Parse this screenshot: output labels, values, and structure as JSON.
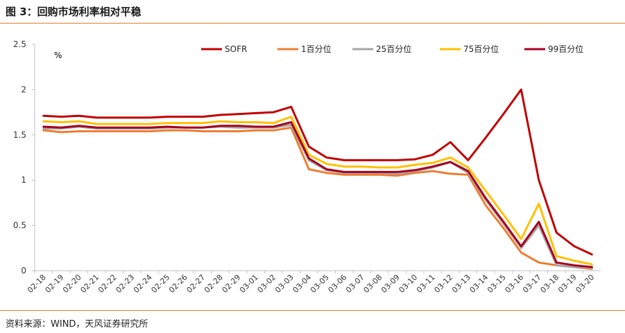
{
  "title": "图 3：回购市场利率相对平稳",
  "source": "资料来源：WIND，天风证券研究所",
  "chart_data": {
    "type": "line",
    "unit": "%",
    "ylim": [
      0,
      2.5
    ],
    "yticks": [
      "2.5",
      "2",
      "1.5",
      "1",
      "0.5",
      "0"
    ],
    "ytick_values": [
      2.5,
      2,
      1.5,
      1,
      0.5,
      0
    ],
    "categories": [
      "02-18",
      "02-19",
      "02-20",
      "02-21",
      "02-22",
      "02-23",
      "02-24",
      "02-25",
      "02-26",
      "02-27",
      "02-28",
      "02-29",
      "03-01",
      "03-02",
      "03-03",
      "03-04",
      "03-05",
      "03-06",
      "03-07",
      "03-08",
      "03-09",
      "03-10",
      "03-11",
      "03-12",
      "03-13",
      "03-14",
      "03-15",
      "03-16",
      "03-17",
      "03-18",
      "03-19",
      "03-20"
    ],
    "legend_position": "top",
    "grid": false,
    "series": [
      {
        "name": "SOFR",
        "color": "#c00000",
        "values": [
          1.71,
          1.7,
          1.71,
          1.69,
          1.69,
          1.69,
          1.69,
          1.7,
          1.7,
          1.7,
          1.72,
          1.73,
          1.74,
          1.75,
          1.81,
          1.37,
          1.25,
          1.22,
          1.22,
          1.22,
          1.22,
          1.23,
          1.28,
          1.42,
          1.22,
          1.47,
          1.73,
          2.0,
          1.0,
          0.42,
          0.27,
          0.18
        ]
      },
      {
        "name": "1百分位",
        "color": "#ed7d31",
        "values": [
          1.55,
          1.53,
          1.54,
          1.54,
          1.54,
          1.54,
          1.54,
          1.55,
          1.55,
          1.54,
          1.54,
          1.54,
          1.55,
          1.55,
          1.58,
          1.12,
          1.08,
          1.06,
          1.06,
          1.06,
          1.05,
          1.08,
          1.1,
          1.07,
          1.06,
          0.72,
          0.47,
          0.2,
          0.09,
          0.06,
          0.04,
          0.02
        ]
      },
      {
        "name": "25百分位",
        "color": "#a5a5a5",
        "values": [
          1.57,
          1.57,
          1.59,
          1.57,
          1.57,
          1.57,
          1.57,
          1.58,
          1.58,
          1.58,
          1.59,
          1.58,
          1.58,
          1.58,
          1.61,
          1.22,
          1.11,
          1.08,
          1.08,
          1.08,
          1.07,
          1.1,
          1.14,
          1.2,
          1.08,
          0.78,
          0.52,
          0.25,
          0.5,
          0.06,
          0.04,
          0.03
        ]
      },
      {
        "name": "75百分位",
        "color": "#ffc000",
        "values": [
          1.65,
          1.64,
          1.65,
          1.62,
          1.62,
          1.62,
          1.62,
          1.63,
          1.63,
          1.63,
          1.65,
          1.64,
          1.64,
          1.63,
          1.7,
          1.28,
          1.18,
          1.15,
          1.15,
          1.14,
          1.14,
          1.17,
          1.19,
          1.25,
          1.14,
          0.88,
          0.62,
          0.35,
          0.74,
          0.16,
          0.11,
          0.07
        ]
      },
      {
        "name": "99百分位",
        "color": "#a50021",
        "values": [
          1.59,
          1.58,
          1.6,
          1.58,
          1.58,
          1.58,
          1.58,
          1.59,
          1.58,
          1.58,
          1.6,
          1.6,
          1.59,
          1.59,
          1.64,
          1.24,
          1.12,
          1.09,
          1.09,
          1.09,
          1.09,
          1.11,
          1.15,
          1.2,
          1.1,
          0.8,
          0.54,
          0.27,
          0.54,
          0.09,
          0.06,
          0.04
        ]
      }
    ]
  }
}
